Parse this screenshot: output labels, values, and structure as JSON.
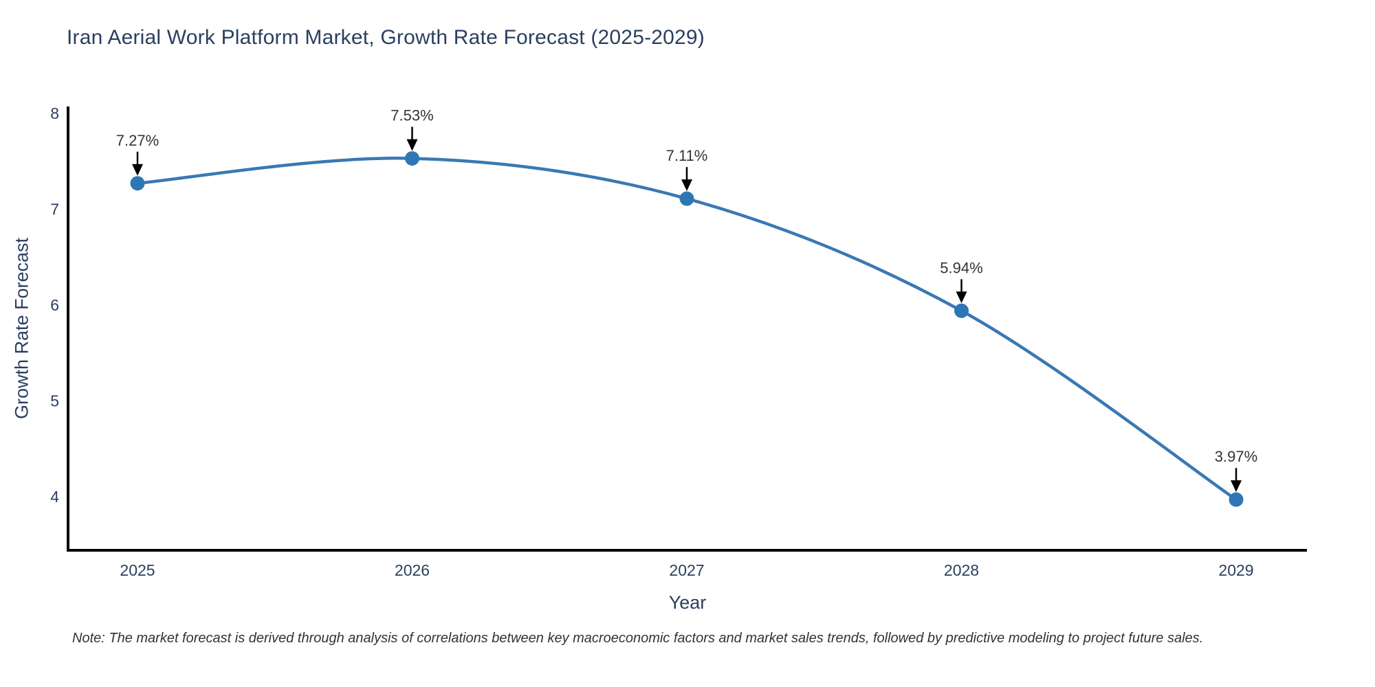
{
  "chart_data": {
    "type": "line",
    "title": "Iran Aerial Work Platform Market, Growth Rate Forecast (2025-2029)",
    "xlabel": "Year",
    "ylabel": "Growth Rate Forecast",
    "categories": [
      "2025",
      "2026",
      "2027",
      "2028",
      "2029"
    ],
    "series": [
      {
        "name": "Growth Rate Forecast",
        "values": [
          7.27,
          7.53,
          7.11,
          5.94,
          3.97
        ],
        "point_labels": [
          "7.27%",
          "7.53%",
          "7.11%",
          "5.94%",
          "3.97%"
        ]
      }
    ],
    "yticks": [
      4,
      5,
      6,
      7,
      8
    ],
    "ylim": [
      3.45,
      8.06
    ],
    "line_shape": "spline",
    "markers": true,
    "grid": false,
    "legend_position": "none",
    "annotations_style": "value label with downward black arrow to each point",
    "colors": {
      "line": "#3a78b3",
      "marker": "#2e77b5",
      "axis": "#000000",
      "tick_label": "#2a3f5f",
      "title": "#2a3f5f",
      "annotation_text": "#333333",
      "arrow": "#000000",
      "background": "#ffffff"
    }
  },
  "note": {
    "text": "Note: The market forecast is derived through analysis of correlations between key macroeconomic factors and market sales trends, followed by predictive modeling to project future sales."
  }
}
